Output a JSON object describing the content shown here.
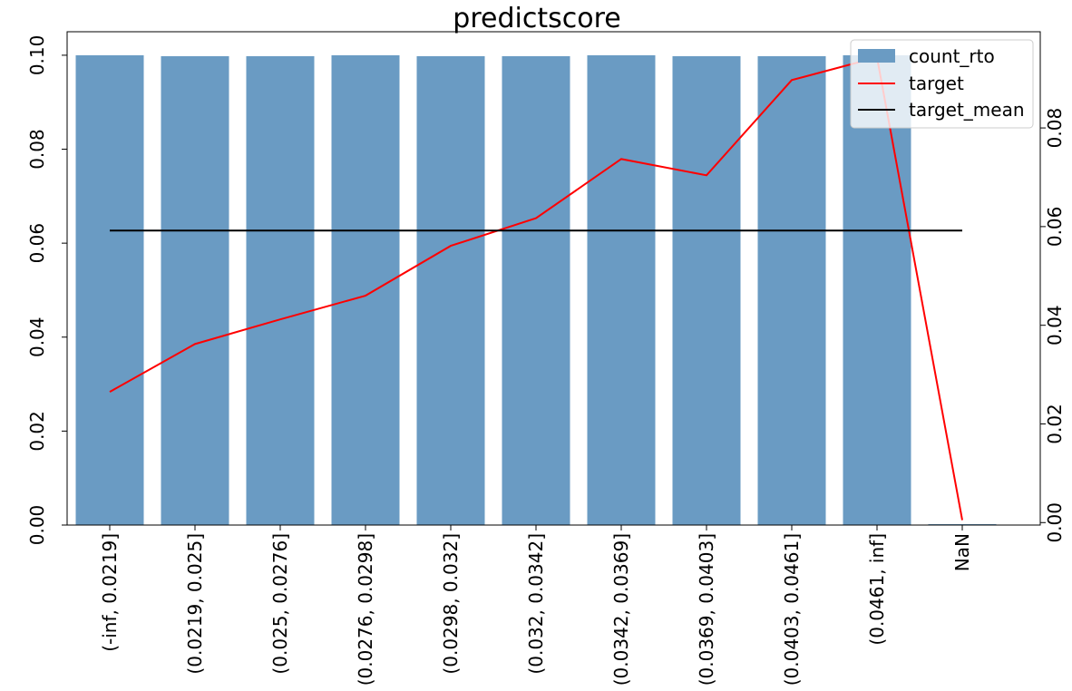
{
  "chart_data": {
    "type": "bar",
    "title": "predictscore",
    "categories": [
      "(-inf, 0.0219]",
      "(0.0219, 0.025]",
      "(0.025, 0.0276]",
      "(0.0276, 0.0298]",
      "(0.0298, 0.032]",
      "(0.032, 0.0342]",
      "(0.0342, 0.0369]",
      "(0.0369, 0.0403]",
      "(0.0403, 0.0461]",
      "(0.0461, inf]",
      "NaN"
    ],
    "series": [
      {
        "name": "count_rto",
        "kind": "bar",
        "axis": "left",
        "color": "#6a9bc3",
        "values": [
          0.1,
          0.0998,
          0.0998,
          0.1,
          0.0998,
          0.0998,
          0.1,
          0.0998,
          0.0998,
          0.1,
          0.0002
        ]
      },
      {
        "name": "target",
        "kind": "line",
        "axis": "right",
        "color": "#ff0000",
        "values": [
          0.0265,
          0.0362,
          0.0412,
          0.046,
          0.0561,
          0.0617,
          0.0737,
          0.0704,
          0.0897,
          0.0943,
          0.0005
        ]
      },
      {
        "name": "target_mean",
        "kind": "line",
        "axis": "right",
        "color": "#000000",
        "values": [
          0.0592,
          0.0592,
          0.0592,
          0.0592,
          0.0592,
          0.0592,
          0.0592,
          0.0592,
          0.0592,
          0.0592,
          0.0592
        ]
      }
    ],
    "y_left": {
      "lim": [
        0,
        0.105
      ],
      "ticks": [
        0.0,
        0.02,
        0.04,
        0.06,
        0.08,
        0.1
      ],
      "tick_labels": [
        "0.00",
        "0.02",
        "0.04",
        "0.06",
        "0.08",
        "0.10"
      ]
    },
    "y_right": {
      "lim": [
        -0.0005,
        0.0995
      ],
      "ticks": [
        0.0,
        0.02,
        0.04,
        0.06,
        0.08
      ],
      "tick_labels": [
        "0.00",
        "0.02",
        "0.04",
        "0.06",
        "0.08"
      ]
    },
    "grid": false,
    "legend_position": "top-right"
  }
}
